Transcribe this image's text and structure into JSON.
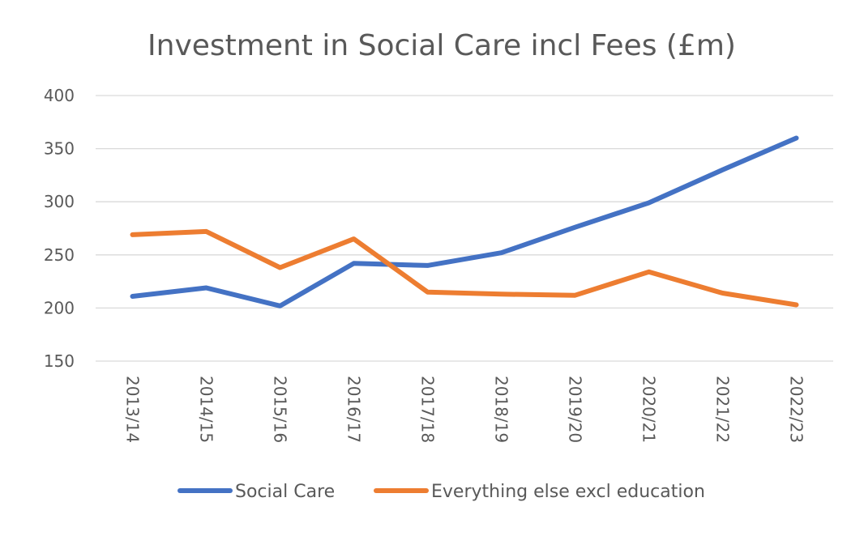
{
  "chart_data": {
    "type": "line",
    "title": "Investment in Social Care incl Fees (£m)",
    "xlabel": "",
    "ylabel": "",
    "categories": [
      "2013/14",
      "2014/15",
      "2015/16",
      "2016/17",
      "2017/18",
      "2018/19",
      "2019/20",
      "2020/21",
      "2021/22",
      "2022/23"
    ],
    "ylim": [
      150,
      400
    ],
    "yticks": [
      150,
      200,
      250,
      300,
      350,
      400
    ],
    "grid": true,
    "legend_position": "bottom",
    "series": [
      {
        "name": "Social Care",
        "color": "#4472C4",
        "values": [
          211,
          219,
          202,
          242,
          240,
          252,
          276,
          299,
          330,
          360
        ]
      },
      {
        "name": "Everything else excl education",
        "color": "#ED7D31",
        "values": [
          269,
          272,
          238,
          265,
          215,
          213,
          212,
          234,
          214,
          203
        ]
      }
    ]
  }
}
